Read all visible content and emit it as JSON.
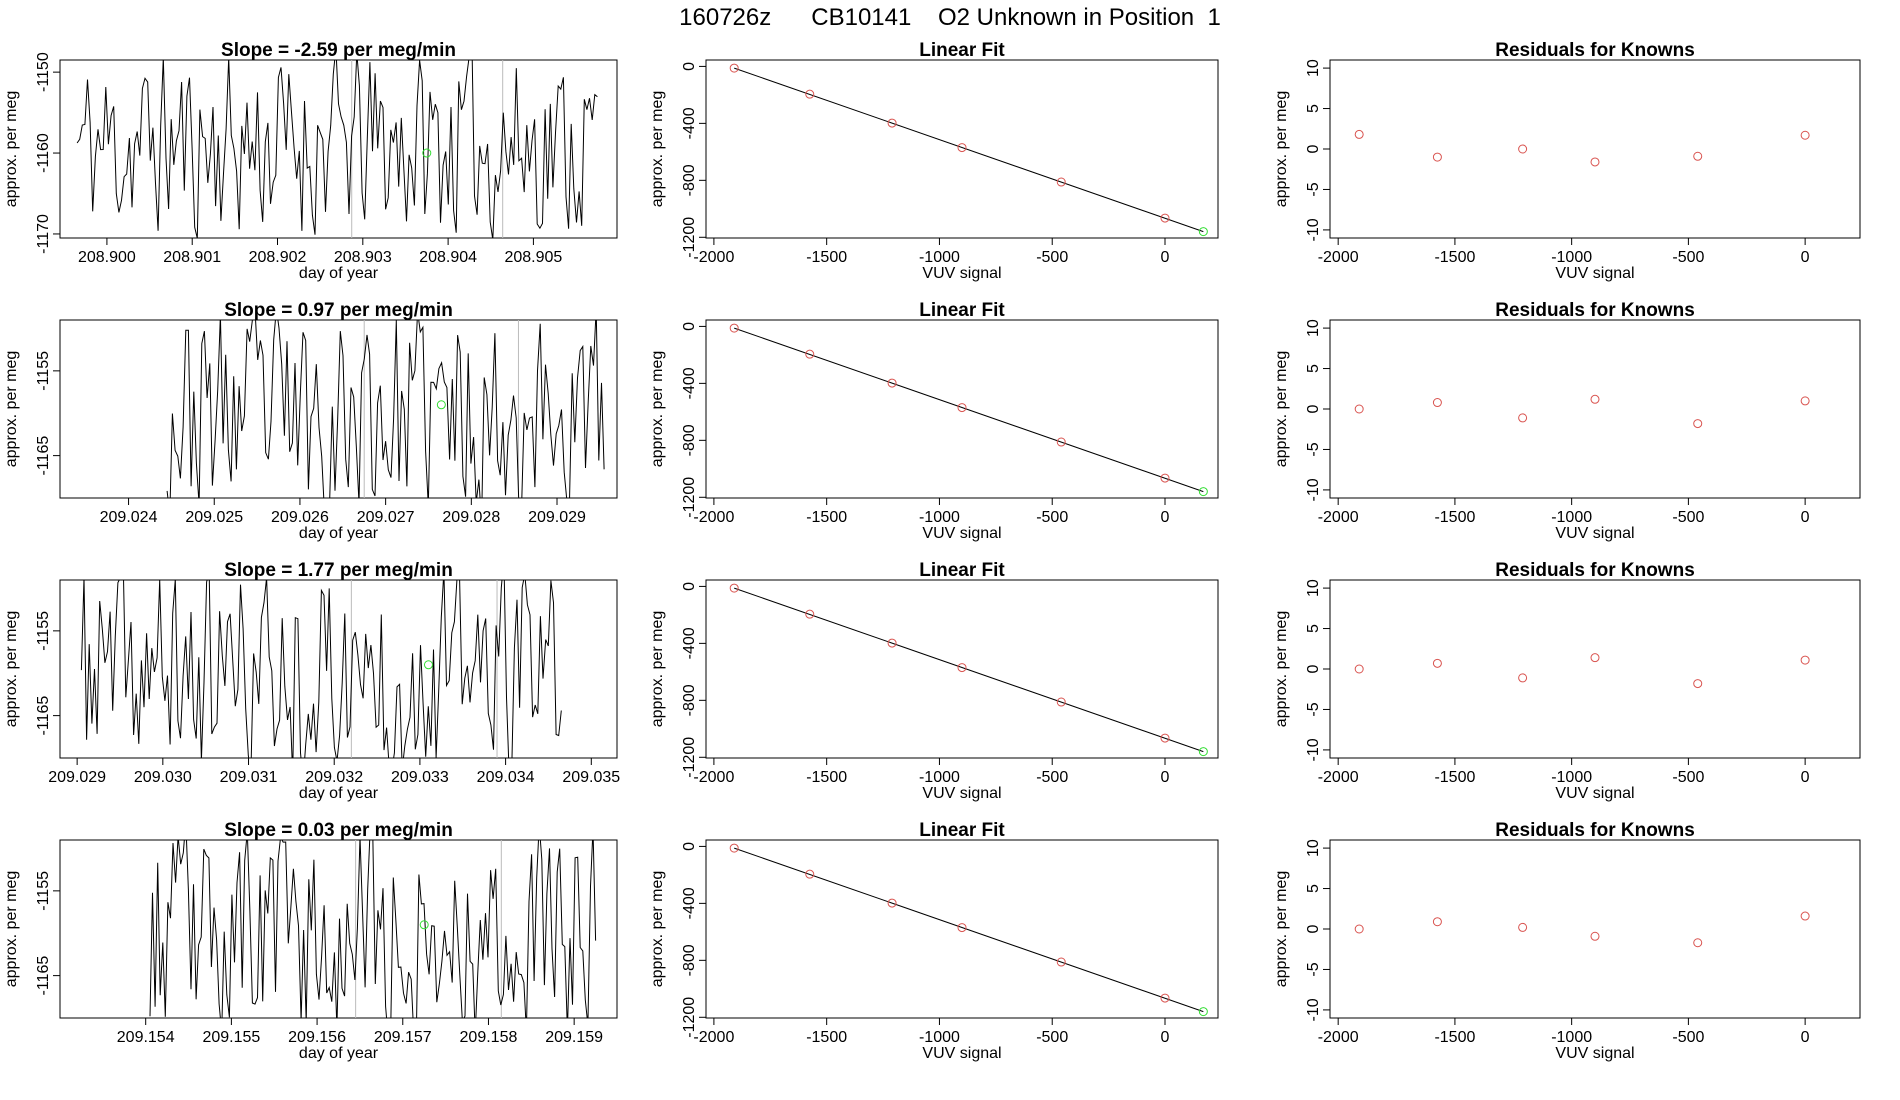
{
  "title": "160726z      CB10141    O2 Unknown in Position  1",
  "colors": {
    "line": "#000000",
    "known": "#d9534f",
    "unknown": "#33dd33",
    "vline": "#bbbbbb"
  },
  "rows": [
    {
      "time": {
        "title": "Slope =  -2.59  per meg/min",
        "xlabel": "day of year",
        "ylabel": "approx. per meg",
        "xlim": [
          208.89945,
          208.90598
        ],
        "ylim": [
          -1170.5,
          -1148.5
        ],
        "xticks": [
          208.9,
          208.901,
          208.902,
          208.903,
          208.904,
          208.905
        ],
        "xtick_labels": [
          "208.900",
          "208.901",
          "208.902",
          "208.903",
          "208.904",
          "208.905"
        ],
        "yticks": [
          -1150,
          -1160,
          -1170
        ],
        "ytick_labels": [
          "-1150",
          "-1160",
          "-1170"
        ],
        "vlines": [
          208.90287,
          208.90464
        ],
        "marker": {
          "x": 208.90375,
          "y": -1160
        },
        "series": {
          "start": 208.89965,
          "end": 208.90575,
          "n": 200,
          "mean": -1159,
          "amp": 8.5,
          "seed": 11,
          "drift": -0.0
        }
      },
      "fit": {
        "title": "Linear Fit",
        "xlabel": "VUV signal",
        "ylabel": "approx. per meg",
        "xlim": [
          -2035,
          235
        ],
        "ylim": [
          -1205,
          45
        ],
        "xticks": [
          -2000,
          -1500,
          -1000,
          -500,
          0
        ],
        "xtick_labels": [
          "-2000",
          "-1500",
          "-1000",
          "-500",
          "0"
        ],
        "yticks": [
          0,
          -400,
          -800,
          -1200
        ],
        "ytick_labels": [
          "0",
          "-400",
          "-800",
          "-1200"
        ],
        "line": [
          [
            -1910,
            -12
          ],
          [
            170,
            -1160
          ]
        ],
        "knowns": [
          [
            -1910,
            -12
          ],
          [
            -1575,
            -195
          ],
          [
            -1210,
            -398
          ],
          [
            -900,
            -570
          ],
          [
            -460,
            -812
          ],
          [
            0,
            -1065
          ]
        ],
        "unknown": [
          170,
          -1160
        ]
      },
      "resid": {
        "title": "Residuals for Knowns",
        "xlabel": "VUV signal",
        "ylabel": "approx. per meg",
        "xlim": [
          -2035,
          235
        ],
        "ylim": [
          -11,
          11
        ],
        "xticks": [
          -2000,
          -1500,
          -1000,
          -500,
          0
        ],
        "xtick_labels": [
          "-2000",
          "-1500",
          "-1000",
          "-500",
          "0"
        ],
        "yticks": [
          10,
          5,
          0,
          -5,
          -10
        ],
        "ytick_labels": [
          "10",
          "5",
          "0",
          "-5",
          "-10"
        ],
        "points": [
          [
            -1910,
            1.8
          ],
          [
            -1575,
            -1.0
          ],
          [
            -1210,
            0.0
          ],
          [
            -900,
            -1.6
          ],
          [
            -460,
            -0.9
          ],
          [
            0,
            1.7
          ]
        ]
      }
    },
    {
      "time": {
        "title": "Slope =  0.97  per meg/min",
        "xlabel": "day of year",
        "ylabel": "approx. per meg",
        "xlim": [
          209.0232,
          209.0297
        ],
        "ylim": [
          -1170,
          -1149
        ],
        "xticks": [
          209.024,
          209.025,
          209.026,
          209.027,
          209.028,
          209.029
        ],
        "xtick_labels": [
          "209.024",
          "209.025",
          "209.026",
          "209.027",
          "209.028",
          "209.029"
        ],
        "yticks": [
          -1155,
          -1165
        ],
        "ytick_labels": [
          "-1155",
          "-1165"
        ],
        "vlines": [
          209.02675,
          209.02855
        ],
        "marker": {
          "x": 209.02765,
          "y": -1159
        },
        "series": {
          "start": 209.02445,
          "end": 209.02955,
          "n": 165,
          "mean": -1160,
          "amp": 9,
          "seed": 23,
          "drift": 0
        }
      },
      "fit": {
        "title": "Linear Fit",
        "xlabel": "VUV signal",
        "ylabel": "approx. per meg",
        "xlim": [
          -2035,
          235
        ],
        "ylim": [
          -1205,
          45
        ],
        "xticks": [
          -2000,
          -1500,
          -1000,
          -500,
          0
        ],
        "xtick_labels": [
          "-2000",
          "-1500",
          "-1000",
          "-500",
          "0"
        ],
        "yticks": [
          0,
          -400,
          -800,
          -1200
        ],
        "ytick_labels": [
          "0",
          "-400",
          "-800",
          "-1200"
        ],
        "line": [
          [
            -1910,
            -12
          ],
          [
            170,
            -1160
          ]
        ],
        "knowns": [
          [
            -1910,
            -12
          ],
          [
            -1575,
            -195
          ],
          [
            -1210,
            -398
          ],
          [
            -900,
            -570
          ],
          [
            -460,
            -812
          ],
          [
            0,
            -1065
          ]
        ],
        "unknown": [
          170,
          -1160
        ]
      },
      "resid": {
        "title": "Residuals for Knowns",
        "xlabel": "VUV signal",
        "ylabel": "approx. per meg",
        "xlim": [
          -2035,
          235
        ],
        "ylim": [
          -11,
          11
        ],
        "xticks": [
          -2000,
          -1500,
          -1000,
          -500,
          0
        ],
        "xtick_labels": [
          "-2000",
          "-1500",
          "-1000",
          "-500",
          "0"
        ],
        "yticks": [
          10,
          5,
          0,
          -5,
          -10
        ],
        "ytick_labels": [
          "10",
          "5",
          "0",
          "-5",
          "-10"
        ],
        "points": [
          [
            -1910,
            0.0
          ],
          [
            -1575,
            0.8
          ],
          [
            -1210,
            -1.1
          ],
          [
            -900,
            1.2
          ],
          [
            -460,
            -1.8
          ],
          [
            0,
            1.0
          ]
        ]
      }
    },
    {
      "time": {
        "title": "Slope =  1.77  per meg/min",
        "xlabel": "day of year",
        "ylabel": "approx. per meg",
        "xlim": [
          209.0288,
          209.0353
        ],
        "ylim": [
          -1170,
          -1149
        ],
        "xticks": [
          209.029,
          209.03,
          209.031,
          209.032,
          209.033,
          209.034,
          209.035
        ],
        "xtick_labels": [
          "209.029",
          "209.030",
          "209.031",
          "209.032",
          "209.033",
          "209.034",
          "209.035"
        ],
        "yticks": [
          -1155,
          -1165
        ],
        "ytick_labels": [
          "-1155",
          "-1165"
        ],
        "vlines": [
          209.0322,
          209.0339
        ],
        "marker": {
          "x": 209.0331,
          "y": -1159
        },
        "series": {
          "start": 209.02905,
          "end": 209.03465,
          "n": 185,
          "mean": -1160,
          "amp": 9,
          "seed": 37,
          "drift": 0
        }
      },
      "fit": {
        "title": "Linear Fit",
        "xlabel": "VUV signal",
        "ylabel": "approx. per meg",
        "xlim": [
          -2035,
          235
        ],
        "ylim": [
          -1205,
          45
        ],
        "xticks": [
          -2000,
          -1500,
          -1000,
          -500,
          0
        ],
        "xtick_labels": [
          "-2000",
          "-1500",
          "-1000",
          "-500",
          "0"
        ],
        "yticks": [
          0,
          -400,
          -800,
          -1200
        ],
        "ytick_labels": [
          "0",
          "-400",
          "-800",
          "-1200"
        ],
        "line": [
          [
            -1910,
            -12
          ],
          [
            170,
            -1160
          ]
        ],
        "knowns": [
          [
            -1910,
            -12
          ],
          [
            -1575,
            -195
          ],
          [
            -1210,
            -398
          ],
          [
            -900,
            -570
          ],
          [
            -460,
            -812
          ],
          [
            0,
            -1065
          ]
        ],
        "unknown": [
          170,
          -1160
        ]
      },
      "resid": {
        "title": "Residuals for Knowns",
        "xlabel": "VUV signal",
        "ylabel": "approx. per meg",
        "xlim": [
          -2035,
          235
        ],
        "ylim": [
          -11,
          11
        ],
        "xticks": [
          -2000,
          -1500,
          -1000,
          -500,
          0
        ],
        "xtick_labels": [
          "-2000",
          "-1500",
          "-1000",
          "-500",
          "0"
        ],
        "yticks": [
          10,
          5,
          0,
          -5,
          -10
        ],
        "ytick_labels": [
          "10",
          "5",
          "0",
          "-5",
          "-10"
        ],
        "points": [
          [
            -1910,
            0.0
          ],
          [
            -1575,
            0.7
          ],
          [
            -1210,
            -1.1
          ],
          [
            -900,
            1.4
          ],
          [
            -460,
            -1.8
          ],
          [
            0,
            1.1
          ]
        ]
      }
    },
    {
      "time": {
        "title": "Slope =  0.03  per meg/min",
        "xlabel": "day of year",
        "ylabel": "approx. per meg",
        "xlim": [
          209.153,
          209.1595
        ],
        "ylim": [
          -1170,
          -1149
        ],
        "xticks": [
          209.154,
          209.155,
          209.156,
          209.157,
          209.158,
          209.159
        ],
        "xtick_labels": [
          "209.154",
          "209.155",
          "209.156",
          "209.157",
          "209.158",
          "209.159"
        ],
        "yticks": [
          -1155,
          -1165
        ],
        "ytick_labels": [
          "-1155",
          "-1165"
        ],
        "vlines": [
          209.15645,
          209.15815
        ],
        "marker": {
          "x": 209.15725,
          "y": -1159
        },
        "series": {
          "start": 209.15405,
          "end": 209.15925,
          "n": 175,
          "mean": -1160,
          "amp": 9,
          "seed": 53,
          "drift": 0
        }
      },
      "fit": {
        "title": "Linear Fit",
        "xlabel": "VUV signal",
        "ylabel": "approx. per meg",
        "xlim": [
          -2035,
          235
        ],
        "ylim": [
          -1205,
          45
        ],
        "xticks": [
          -2000,
          -1500,
          -1000,
          -500,
          0
        ],
        "xtick_labels": [
          "-2000",
          "-1500",
          "-1000",
          "-500",
          "0"
        ],
        "yticks": [
          0,
          -400,
          -800,
          -1200
        ],
        "ytick_labels": [
          "0",
          "-400",
          "-800",
          "-1200"
        ],
        "line": [
          [
            -1910,
            -12
          ],
          [
            170,
            -1160
          ]
        ],
        "knowns": [
          [
            -1910,
            -12
          ],
          [
            -1575,
            -195
          ],
          [
            -1210,
            -398
          ],
          [
            -900,
            -570
          ],
          [
            -460,
            -812
          ],
          [
            0,
            -1065
          ]
        ],
        "unknown": [
          170,
          -1160
        ]
      },
      "resid": {
        "title": "Residuals for Knowns",
        "xlabel": "VUV signal",
        "ylabel": "approx. per meg",
        "xlim": [
          -2035,
          235
        ],
        "ylim": [
          -11,
          11
        ],
        "xticks": [
          -2000,
          -1500,
          -1000,
          -500,
          0
        ],
        "xtick_labels": [
          "-2000",
          "-1500",
          "-1000",
          "-500",
          "0"
        ],
        "yticks": [
          10,
          5,
          0,
          -5,
          -10
        ],
        "ytick_labels": [
          "10",
          "5",
          "0",
          "-5",
          "-10"
        ],
        "points": [
          [
            -1910,
            0.0
          ],
          [
            -1575,
            0.9
          ],
          [
            -1210,
            0.2
          ],
          [
            -900,
            -0.9
          ],
          [
            -460,
            -1.7
          ],
          [
            0,
            1.6
          ]
        ]
      }
    }
  ],
  "chart_data": [
    {
      "type": "line",
      "panel": "row1-time",
      "title": "Slope =  -2.59  per meg/min",
      "xlabel": "day of year",
      "ylabel": "approx. per meg",
      "xlim": [
        208.89945,
        208.90598
      ],
      "ylim": [
        -1170.5,
        -1148.5
      ],
      "note": "noisy time series approx. -1170 to -1150, unknown marker near (208.90375, -1160)"
    },
    {
      "type": "scatter",
      "panel": "row1-fit",
      "title": "Linear Fit",
      "xlabel": "VUV signal",
      "ylabel": "approx. per meg",
      "series": [
        {
          "name": "knowns",
          "x": [
            -1910,
            -1575,
            -1210,
            -900,
            -460,
            0
          ],
          "y": [
            -12,
            -195,
            -398,
            -570,
            -812,
            -1065
          ]
        },
        {
          "name": "unknown",
          "x": [
            170
          ],
          "y": [
            -1160
          ]
        }
      ]
    },
    {
      "type": "scatter",
      "panel": "row1-resid",
      "title": "Residuals for Knowns",
      "xlabel": "VUV signal",
      "ylabel": "approx. per meg",
      "x": [
        -1910,
        -1575,
        -1210,
        -900,
        -460,
        0
      ],
      "y": [
        1.8,
        -1.0,
        0.0,
        -1.6,
        -0.9,
        1.7
      ]
    },
    {
      "type": "line",
      "panel": "row2-time",
      "title": "Slope =  0.97  per meg/min",
      "xlabel": "day of year",
      "ylabel": "approx. per meg",
      "xlim": [
        209.0232,
        209.0297
      ],
      "ylim": [
        -1170,
        -1149
      ]
    },
    {
      "type": "scatter",
      "panel": "row2-resid",
      "title": "Residuals for Knowns",
      "x": [
        -1910,
        -1575,
        -1210,
        -900,
        -460,
        0
      ],
      "y": [
        0.0,
        0.8,
        -1.1,
        1.2,
        -1.8,
        1.0
      ]
    },
    {
      "type": "line",
      "panel": "row3-time",
      "title": "Slope =  1.77  per meg/min",
      "xlabel": "day of year",
      "ylabel": "approx. per meg",
      "xlim": [
        209.0288,
        209.0353
      ],
      "ylim": [
        -1170,
        -1149
      ]
    },
    {
      "type": "scatter",
      "panel": "row3-resid",
      "title": "Residuals for Knowns",
      "x": [
        -1910,
        -1575,
        -1210,
        -900,
        -460,
        0
      ],
      "y": [
        0.0,
        0.7,
        -1.1,
        1.4,
        -1.8,
        1.1
      ]
    },
    {
      "type": "line",
      "panel": "row4-time",
      "title": "Slope =  0.03  per meg/min",
      "xlabel": "day of year",
      "ylabel": "approx. per meg",
      "xlim": [
        209.153,
        209.1595
      ],
      "ylim": [
        -1170,
        -1149
      ]
    },
    {
      "type": "scatter",
      "panel": "row4-resid",
      "title": "Residuals for Knowns",
      "x": [
        -1910,
        -1575,
        -1210,
        -900,
        -460,
        0
      ],
      "y": [
        0.0,
        0.9,
        0.2,
        -0.9,
        -1.7,
        1.6
      ]
    }
  ]
}
